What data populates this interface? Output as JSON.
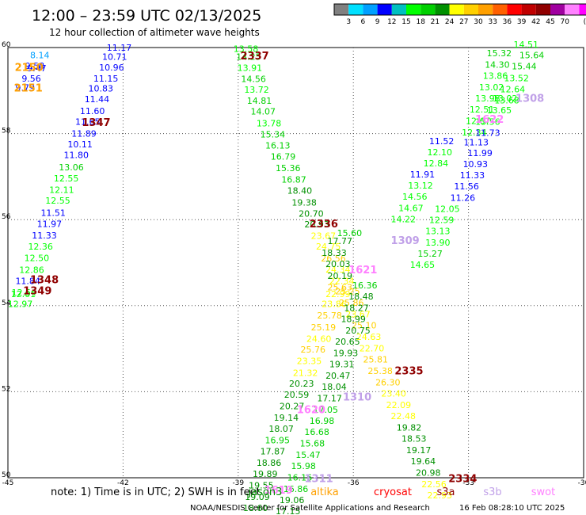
{
  "chart_data": {
    "type": "scatter",
    "title": "12:00 – 23:59 UTC 02/13/2025",
    "subtitle": "12 hour collection of altimeter wave heights",
    "xlim": [
      -45,
      -30
    ],
    "ylim": [
      50,
      60
    ],
    "x_ticks": [
      "-45",
      "-42",
      "-39",
      "-36",
      "-33",
      "-30"
    ],
    "y_ticks": [
      "60",
      "58",
      "56",
      "54",
      "52",
      "50"
    ],
    "grid": "dotted",
    "legend": {
      "position": "top-right",
      "unit": "(ft)",
      "colors": [
        "#808080",
        "#00e0ff",
        "#00a0ff",
        "#0000ff",
        "#00c0c0",
        "#00ff00",
        "#00d000",
        "#009000",
        "#ffff00",
        "#ffd000",
        "#ffa000",
        "#ff6000",
        "#ff0000",
        "#c00000",
        "#900000",
        "#a000a0",
        "#ff80ff",
        "#ff00ff",
        "#000000"
      ],
      "labels": [
        "3",
        "6",
        "9",
        "12",
        "15",
        "18",
        "21",
        "24",
        "27",
        "30",
        "33",
        "36",
        "39",
        "42",
        "45",
        "70"
      ]
    },
    "points": [
      {
        "x": -44.17,
        "y": 59.75,
        "v": "8.14",
        "c": "#00a0ff"
      },
      {
        "x": -44.25,
        "y": 59.45,
        "v": "9.47",
        "c": "#0000ff"
      },
      {
        "x": -44.3,
        "y": 59.5,
        "v": "9.58",
        "c": "#0000ff"
      },
      {
        "x": -44.39,
        "y": 59.21,
        "v": "9.56",
        "c": "#0000ff"
      },
      {
        "x": -44.55,
        "y": 59.0,
        "v": "9.79",
        "c": "#0000ff"
      },
      {
        "x": -42.1,
        "y": 59.93,
        "v": "11.17",
        "c": "#0000ff"
      },
      {
        "x": -42.22,
        "y": 59.71,
        "v": "10.71",
        "c": "#0000ff"
      },
      {
        "x": -42.3,
        "y": 59.47,
        "v": "10.96",
        "c": "#0000ff"
      },
      {
        "x": -42.45,
        "y": 59.21,
        "v": "11.15",
        "c": "#0000ff"
      },
      {
        "x": -42.58,
        "y": 58.98,
        "v": "10.83",
        "c": "#0000ff"
      },
      {
        "x": -42.68,
        "y": 58.73,
        "v": "11.44",
        "c": "#0000ff"
      },
      {
        "x": -42.8,
        "y": 58.45,
        "v": "11.60",
        "c": "#0000ff"
      },
      {
        "x": -42.92,
        "y": 58.2,
        "v": "11.65",
        "c": "#0000ff"
      },
      {
        "x": -43.02,
        "y": 57.93,
        "v": "11.89",
        "c": "#0000ff"
      },
      {
        "x": -43.12,
        "y": 57.68,
        "v": "10.11",
        "c": "#0000ff"
      },
      {
        "x": -43.22,
        "y": 57.43,
        "v": "11.80",
        "c": "#0000ff"
      },
      {
        "x": -43.35,
        "y": 57.15,
        "v": "13.06",
        "c": "#00d000"
      },
      {
        "x": -43.48,
        "y": 56.89,
        "v": "12.55",
        "c": "#00ff00"
      },
      {
        "x": -43.6,
        "y": 56.62,
        "v": "12.11",
        "c": "#00ff00"
      },
      {
        "x": -43.7,
        "y": 56.37,
        "v": "12.55",
        "c": "#00ff00"
      },
      {
        "x": -43.82,
        "y": 56.09,
        "v": "11.51",
        "c": "#0000ff"
      },
      {
        "x": -43.92,
        "y": 55.83,
        "v": "11.97",
        "c": "#0000ff"
      },
      {
        "x": -44.05,
        "y": 55.56,
        "v": "11.33",
        "c": "#0000ff"
      },
      {
        "x": -44.15,
        "y": 55.3,
        "v": "12.36",
        "c": "#00ff00"
      },
      {
        "x": -44.25,
        "y": 55.04,
        "v": "12.50",
        "c": "#00ff00"
      },
      {
        "x": -44.38,
        "y": 54.76,
        "v": "12.86",
        "c": "#00ff00"
      },
      {
        "x": -44.48,
        "y": 54.5,
        "v": "11.84",
        "c": "#0000ff"
      },
      {
        "x": -44.58,
        "y": 54.24,
        "v": "12.54",
        "c": "#00ff00"
      },
      {
        "x": -44.68,
        "y": 53.97,
        "v": "12.97",
        "c": "#00ff00"
      },
      {
        "x": -44.6,
        "y": 54.2,
        "v": "12.01",
        "c": "#00ff00"
      },
      {
        "x": -38.8,
        "y": 59.9,
        "v": "13.58",
        "c": "#00ff00"
      },
      {
        "x": -38.73,
        "y": 59.71,
        "v": "14.25",
        "c": "#00d000"
      },
      {
        "x": -38.7,
        "y": 59.46,
        "v": "13.91",
        "c": "#00ff00"
      },
      {
        "x": -38.6,
        "y": 59.2,
        "v": "14.56",
        "c": "#00d000"
      },
      {
        "x": -38.52,
        "y": 58.95,
        "v": "13.72",
        "c": "#00ff00"
      },
      {
        "x": -38.45,
        "y": 58.69,
        "v": "14.81",
        "c": "#00d000"
      },
      {
        "x": -38.35,
        "y": 58.44,
        "v": "14.07",
        "c": "#00d000"
      },
      {
        "x": -38.2,
        "y": 58.17,
        "v": "13.78",
        "c": "#00ff00"
      },
      {
        "x": -38.1,
        "y": 57.91,
        "v": "15.34",
        "c": "#00d000"
      },
      {
        "x": -37.97,
        "y": 57.65,
        "v": "16.13",
        "c": "#00d000"
      },
      {
        "x": -37.83,
        "y": 57.39,
        "v": "16.79",
        "c": "#00d000"
      },
      {
        "x": -37.7,
        "y": 57.13,
        "v": "15.36",
        "c": "#00d000"
      },
      {
        "x": -37.55,
        "y": 56.86,
        "v": "16.87",
        "c": "#00d000"
      },
      {
        "x": -37.4,
        "y": 56.6,
        "v": "18.40",
        "c": "#009000"
      },
      {
        "x": -37.28,
        "y": 56.33,
        "v": "19.38",
        "c": "#009000"
      },
      {
        "x": -37.1,
        "y": 56.07,
        "v": "20.70",
        "c": "#009000"
      },
      {
        "x": -36.95,
        "y": 55.82,
        "v": "20.93",
        "c": "#009000"
      },
      {
        "x": -36.78,
        "y": 55.55,
        "v": "23.67",
        "c": "#ffff00"
      },
      {
        "x": -36.65,
        "y": 55.3,
        "v": "24.75",
        "c": "#ffff00"
      },
      {
        "x": -36.52,
        "y": 55.03,
        "v": "26.56",
        "c": "#ffd000"
      },
      {
        "x": -36.4,
        "y": 54.77,
        "v": "24.34",
        "c": "#ffff00"
      },
      {
        "x": -36.3,
        "y": 54.5,
        "v": "22.34",
        "c": "#ffff00"
      },
      {
        "x": -36.35,
        "y": 54.36,
        "v": "25.63",
        "c": "#ffd000"
      },
      {
        "x": -36.4,
        "y": 54.2,
        "v": "22.99",
        "c": "#ffff00"
      },
      {
        "x": -36.5,
        "y": 53.97,
        "v": "23.86",
        "c": "#ffff00"
      },
      {
        "x": -36.62,
        "y": 53.7,
        "v": "25.78",
        "c": "#ffd000"
      },
      {
        "x": -36.78,
        "y": 53.43,
        "v": "25.19",
        "c": "#ffd000"
      },
      {
        "x": -36.9,
        "y": 53.16,
        "v": "24.60",
        "c": "#ffff00"
      },
      {
        "x": -37.05,
        "y": 52.91,
        "v": "25.76",
        "c": "#ffd000"
      },
      {
        "x": -37.15,
        "y": 52.64,
        "v": "23.35",
        "c": "#ffff00"
      },
      {
        "x": -37.25,
        "y": 52.37,
        "v": "21.32",
        "c": "#ffff00"
      },
      {
        "x": -37.35,
        "y": 52.12,
        "v": "20.23",
        "c": "#009000"
      },
      {
        "x": -37.48,
        "y": 51.86,
        "v": "20.59",
        "c": "#009000"
      },
      {
        "x": -37.6,
        "y": 51.59,
        "v": "20.27",
        "c": "#009000"
      },
      {
        "x": -37.75,
        "y": 51.33,
        "v": "19.14",
        "c": "#009000"
      },
      {
        "x": -37.88,
        "y": 51.07,
        "v": "18.07",
        "c": "#009000"
      },
      {
        "x": -37.98,
        "y": 50.8,
        "v": "16.95",
        "c": "#00d000"
      },
      {
        "x": -38.1,
        "y": 50.54,
        "v": "17.87",
        "c": "#009000"
      },
      {
        "x": -38.2,
        "y": 50.28,
        "v": "18.86",
        "c": "#009000"
      },
      {
        "x": -38.3,
        "y": 50.02,
        "v": "19.89",
        "c": "#009000"
      },
      {
        "x": -38.4,
        "y": 49.75,
        "v": "19.55",
        "c": "#009000"
      },
      {
        "x": -38.5,
        "y": 49.48,
        "v": "19.09",
        "c": "#009000"
      },
      {
        "x": -38.55,
        "y": 49.23,
        "v": "18.60",
        "c": "#009000"
      },
      {
        "x": -36.5,
        "y": 55.16,
        "v": "18.33",
        "c": "#009000"
      },
      {
        "x": -36.4,
        "y": 54.9,
        "v": "20.03",
        "c": "#009000"
      },
      {
        "x": -36.35,
        "y": 54.62,
        "v": "20.19",
        "c": "#009000"
      },
      {
        "x": -36.35,
        "y": 55.43,
        "v": "17.77",
        "c": "#009000"
      },
      {
        "x": -36.1,
        "y": 55.62,
        "v": "15.60",
        "c": "#00d000"
      },
      {
        "x": -36.15,
        "y": 54.26,
        "v": "25.25",
        "c": "#ffd000"
      },
      {
        "x": -36.05,
        "y": 54.0,
        "v": "25.86",
        "c": "#ffd000"
      },
      {
        "x": -35.88,
        "y": 53.73,
        "v": "23.67",
        "c": "#ffff00"
      },
      {
        "x": -35.72,
        "y": 53.47,
        "v": "25.10",
        "c": "#ffd000"
      },
      {
        "x": -35.6,
        "y": 53.2,
        "v": "24.63",
        "c": "#ffff00"
      },
      {
        "x": -35.52,
        "y": 52.94,
        "v": "22.70",
        "c": "#ffff00"
      },
      {
        "x": -35.42,
        "y": 52.68,
        "v": "25.81",
        "c": "#ffd000"
      },
      {
        "x": -35.3,
        "y": 52.41,
        "v": "25.38",
        "c": "#ffd000"
      },
      {
        "x": -35.1,
        "y": 52.15,
        "v": "26.30",
        "c": "#ffd000"
      },
      {
        "x": -34.95,
        "y": 51.89,
        "v": "23.40",
        "c": "#ffff00"
      },
      {
        "x": -34.82,
        "y": 51.62,
        "v": "22.09",
        "c": "#ffff00"
      },
      {
        "x": -34.7,
        "y": 51.36,
        "v": "22.48",
        "c": "#ffff00"
      },
      {
        "x": -34.55,
        "y": 51.1,
        "v": "19.82",
        "c": "#009000"
      },
      {
        "x": -34.42,
        "y": 50.84,
        "v": "18.53",
        "c": "#009000"
      },
      {
        "x": -34.3,
        "y": 50.57,
        "v": "19.17",
        "c": "#009000"
      },
      {
        "x": -34.18,
        "y": 50.31,
        "v": "19.64",
        "c": "#009000"
      },
      {
        "x": -34.05,
        "y": 50.05,
        "v": "20.98",
        "c": "#009000"
      },
      {
        "x": -33.9,
        "y": 49.78,
        "v": "22.56",
        "c": "#ffff00"
      },
      {
        "x": -33.75,
        "y": 49.52,
        "v": "22.93",
        "c": "#ffff00"
      },
      {
        "x": -35.7,
        "y": 54.4,
        "v": "16.36",
        "c": "#00d000"
      },
      {
        "x": -35.8,
        "y": 54.14,
        "v": "18.48",
        "c": "#009000"
      },
      {
        "x": -35.92,
        "y": 53.88,
        "v": "18.27",
        "c": "#009000"
      },
      {
        "x": -36.0,
        "y": 53.62,
        "v": "18.99",
        "c": "#009000"
      },
      {
        "x": -35.88,
        "y": 53.35,
        "v": "20.75",
        "c": "#009000"
      },
      {
        "x": -36.15,
        "y": 53.09,
        "v": "20.65",
        "c": "#009000"
      },
      {
        "x": -36.2,
        "y": 52.83,
        "v": "19.93",
        "c": "#009000"
      },
      {
        "x": -36.3,
        "y": 52.57,
        "v": "19.31",
        "c": "#009000"
      },
      {
        "x": -36.4,
        "y": 52.3,
        "v": "20.47",
        "c": "#009000"
      },
      {
        "x": -36.5,
        "y": 52.04,
        "v": "18.04",
        "c": "#009000"
      },
      {
        "x": -36.62,
        "y": 51.78,
        "v": "17.17",
        "c": "#009000"
      },
      {
        "x": -36.72,
        "y": 51.51,
        "v": "17.05",
        "c": "#00d000"
      },
      {
        "x": -36.82,
        "y": 51.25,
        "v": "16.98",
        "c": "#00d000"
      },
      {
        "x": -36.95,
        "y": 50.99,
        "v": "16.68",
        "c": "#00d000"
      },
      {
        "x": -37.07,
        "y": 50.73,
        "v": "15.68",
        "c": "#00d000"
      },
      {
        "x": -37.18,
        "y": 50.46,
        "v": "15.47",
        "c": "#00d000"
      },
      {
        "x": -37.3,
        "y": 50.2,
        "v": "15.98",
        "c": "#00d000"
      },
      {
        "x": -37.4,
        "y": 49.94,
        "v": "16.16",
        "c": "#00d000"
      },
      {
        "x": -37.5,
        "y": 49.67,
        "v": "16.86",
        "c": "#00d000"
      },
      {
        "x": -37.6,
        "y": 49.41,
        "v": "19.06",
        "c": "#009000"
      },
      {
        "x": -37.7,
        "y": 49.15,
        "v": "17.15",
        "c": "#009000"
      },
      {
        "x": -31.5,
        "y": 60.0,
        "v": "14.51",
        "c": "#00ff00"
      },
      {
        "x": -32.2,
        "y": 59.8,
        "v": "15.32",
        "c": "#00d000"
      },
      {
        "x": -31.35,
        "y": 59.75,
        "v": "15.64",
        "c": "#00d000"
      },
      {
        "x": -31.55,
        "y": 59.49,
        "v": "15.44",
        "c": "#00d000"
      },
      {
        "x": -32.25,
        "y": 59.53,
        "v": "14.30",
        "c": "#00d000"
      },
      {
        "x": -32.3,
        "y": 59.27,
        "v": "13.86",
        "c": "#00ff00"
      },
      {
        "x": -31.75,
        "y": 59.22,
        "v": "13.52",
        "c": "#00ff00"
      },
      {
        "x": -32.4,
        "y": 59.01,
        "v": "13.02",
        "c": "#00ff00"
      },
      {
        "x": -31.85,
        "y": 58.96,
        "v": "12.64",
        "c": "#00ff00"
      },
      {
        "x": -32.5,
        "y": 58.75,
        "v": "13.98",
        "c": "#00ff00"
      },
      {
        "x": -32.0,
        "y": 58.7,
        "v": "13.68",
        "c": "#00ff00"
      },
      {
        "x": -32.05,
        "y": 58.75,
        "v": "13.02",
        "c": "#00ff00"
      },
      {
        "x": -32.65,
        "y": 58.49,
        "v": "12.51",
        "c": "#00ff00"
      },
      {
        "x": -32.2,
        "y": 58.47,
        "v": "13.65",
        "c": "#00ff00"
      },
      {
        "x": -32.75,
        "y": 58.22,
        "v": "12.67",
        "c": "#00ff00"
      },
      {
        "x": -32.5,
        "y": 58.2,
        "v": "13.56",
        "c": "#00ff00"
      },
      {
        "x": -32.85,
        "y": 57.96,
        "v": "12.34",
        "c": "#00ff00"
      },
      {
        "x": -32.5,
        "y": 57.95,
        "v": "11.73",
        "c": "#0000ff"
      },
      {
        "x": -33.7,
        "y": 57.75,
        "v": "11.52",
        "c": "#0000ff"
      },
      {
        "x": -32.8,
        "y": 57.73,
        "v": "11.13",
        "c": "#0000ff"
      },
      {
        "x": -32.7,
        "y": 57.48,
        "v": "11.99",
        "c": "#0000ff"
      },
      {
        "x": -33.75,
        "y": 57.5,
        "v": "12.10",
        "c": "#00ff00"
      },
      {
        "x": -32.82,
        "y": 57.22,
        "v": "10.93",
        "c": "#0000ff"
      },
      {
        "x": -33.85,
        "y": 57.24,
        "v": "12.84",
        "c": "#00ff00"
      },
      {
        "x": -32.9,
        "y": 56.96,
        "v": "11.33",
        "c": "#0000ff"
      },
      {
        "x": -34.2,
        "y": 56.98,
        "v": "11.91",
        "c": "#0000ff"
      },
      {
        "x": -33.05,
        "y": 56.7,
        "v": "11.56",
        "c": "#0000ff"
      },
      {
        "x": -34.25,
        "y": 56.72,
        "v": "13.12",
        "c": "#00ff00"
      },
      {
        "x": -33.15,
        "y": 56.44,
        "v": "11.26",
        "c": "#0000ff"
      },
      {
        "x": -34.4,
        "y": 56.46,
        "v": "14.56",
        "c": "#00ff00"
      },
      {
        "x": -33.55,
        "y": 56.18,
        "v": "12.05",
        "c": "#00ff00"
      },
      {
        "x": -34.5,
        "y": 56.2,
        "v": "14.67",
        "c": "#00ff00"
      },
      {
        "x": -33.7,
        "y": 55.92,
        "v": "12.59",
        "c": "#00ff00"
      },
      {
        "x": -34.7,
        "y": 55.94,
        "v": "14.22",
        "c": "#00ff00"
      },
      {
        "x": -33.8,
        "y": 55.66,
        "v": "13.13",
        "c": "#00ff00"
      },
      {
        "x": -33.8,
        "y": 55.4,
        "v": "13.90",
        "c": "#00ff00"
      },
      {
        "x": -34.0,
        "y": 55.14,
        "v": "15.27",
        "c": "#00d000"
      },
      {
        "x": -34.2,
        "y": 54.88,
        "v": "14.65",
        "c": "#00ff00"
      }
    ],
    "passes": [
      {
        "x": -44.45,
        "y": 59.46,
        "label": "2150",
        "c": "#ffa000"
      },
      {
        "x": -44.47,
        "y": 58.98,
        "label": "2151",
        "c": "#ffa000"
      },
      {
        "x": -42.7,
        "y": 58.18,
        "label": "1347",
        "c": "#900000"
      },
      {
        "x": -38.57,
        "y": 59.72,
        "label": "2337",
        "c": "#900000"
      },
      {
        "x": -44.05,
        "y": 54.52,
        "label": "1348",
        "c": "#900000"
      },
      {
        "x": -44.23,
        "y": 54.26,
        "label": "1349",
        "c": "#900000"
      },
      {
        "x": -36.77,
        "y": 55.82,
        "label": "2336",
        "c": "#900000"
      },
      {
        "x": -35.75,
        "y": 54.75,
        "label": "1621",
        "c": "#ff80ff"
      },
      {
        "x": -34.65,
        "y": 55.43,
        "label": "1309",
        "c": "#c0a0e8"
      },
      {
        "x": -31.4,
        "y": 58.74,
        "label": "1308",
        "c": "#c0a0e8"
      },
      {
        "x": -32.45,
        "y": 58.25,
        "label": "1622",
        "c": "#ff80ff"
      },
      {
        "x": -34.55,
        "y": 52.4,
        "label": "2335",
        "c": "#900000"
      },
      {
        "x": -35.9,
        "y": 51.8,
        "label": "1310",
        "c": "#c0a0e8"
      },
      {
        "x": -37.1,
        "y": 51.5,
        "label": "1620",
        "c": "#ff80ff"
      },
      {
        "x": -37.95,
        "y": 49.63,
        "label": "1619",
        "c": "#ff80ff"
      },
      {
        "x": -36.9,
        "y": 49.9,
        "label": "1311",
        "c": "#c0a0e8"
      },
      {
        "x": -33.15,
        "y": 49.9,
        "label": "2334",
        "c": "#900000"
      }
    ]
  },
  "footer": {
    "note": "note: 1) Time is in UTC; 2) SWH is in feet",
    "sats": [
      {
        "name": "jason3",
        "color": "#009000"
      },
      {
        "name": "altika",
        "color": "#ffa000"
      },
      {
        "name": "cryosat",
        "color": "#ff0000"
      },
      {
        "name": "s3a",
        "color": "#900000"
      },
      {
        "name": "s3b",
        "color": "#c0a0e8"
      },
      {
        "name": "swot",
        "color": "#ff80ff"
      }
    ],
    "credit": "NOAA/NESDIS Center for Satellite Applications and Research",
    "timestamp": "16 Feb 08:28:10 UTC 2025"
  }
}
